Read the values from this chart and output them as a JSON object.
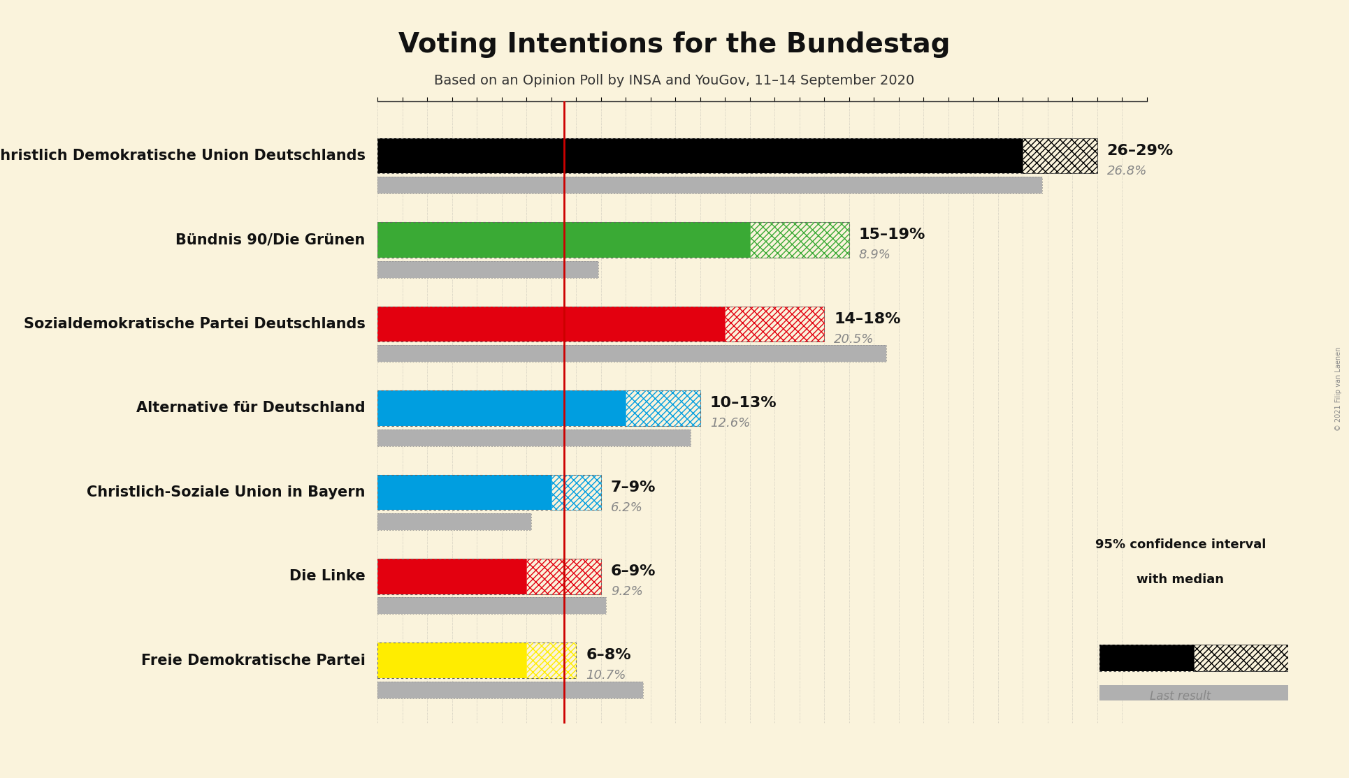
{
  "title": "Voting Intentions for the Bundestag",
  "subtitle": "Based on an Opinion Poll by INSA and YouGov, 11–14 September 2020",
  "copyright": "© 2021 Filip van Laenen",
  "background_color": "#faf3dc",
  "parties": [
    {
      "name": "Christlich Demokratische Union Deutschlands",
      "color": "#000000",
      "hatch_color": "#444444",
      "ci_low": 26,
      "ci_high": 29,
      "median": 27.5,
      "last_result": 26.8,
      "label": "26–29%",
      "last_label": "26.8%"
    },
    {
      "name": "Bündnis 90/Die Grünen",
      "color": "#3aaa35",
      "hatch_color": "#3aaa35",
      "ci_low": 15,
      "ci_high": 19,
      "median": 17,
      "last_result": 8.9,
      "label": "15–19%",
      "last_label": "8.9%"
    },
    {
      "name": "Sozialdemokratische Partei Deutschlands",
      "color": "#e3000f",
      "hatch_color": "#e3000f",
      "ci_low": 14,
      "ci_high": 18,
      "median": 16,
      "last_result": 20.5,
      "label": "14–18%",
      "last_label": "20.5%"
    },
    {
      "name": "Alternative für Deutschland",
      "color": "#009ee0",
      "hatch_color": "#009ee0",
      "ci_low": 10,
      "ci_high": 13,
      "median": 11.5,
      "last_result": 12.6,
      "label": "10–13%",
      "last_label": "12.6%"
    },
    {
      "name": "Christlich-Soziale Union in Bayern",
      "color": "#009ee0",
      "hatch_color": "#009ee0",
      "ci_low": 7,
      "ci_high": 9,
      "median": 8,
      "last_result": 6.2,
      "label": "7–9%",
      "last_label": "6.2%"
    },
    {
      "name": "Die Linke",
      "color": "#e3000f",
      "hatch_color": "#e3000f",
      "ci_low": 6,
      "ci_high": 9,
      "median": 7.5,
      "last_result": 9.2,
      "label": "6–9%",
      "last_label": "9.2%"
    },
    {
      "name": "Freie Demokratische Partei",
      "color": "#ffed00",
      "hatch_color": "#ccbb00",
      "ci_low": 6,
      "ci_high": 8,
      "median": 7,
      "last_result": 10.7,
      "label": "6–8%",
      "last_label": "10.7%"
    }
  ],
  "xlim": [
    0,
    31
  ],
  "red_line_x": 7.5,
  "median_line_color": "#cc0000",
  "last_result_alpha": 0.55,
  "grid_color": "#999999",
  "label_fontsize": 16,
  "label_last_fontsize": 13,
  "party_fontsize": 15,
  "title_fontsize": 28,
  "subtitle_fontsize": 14,
  "bar_height": 0.42,
  "last_bar_height": 0.2,
  "last_bar_gap": 0.04
}
